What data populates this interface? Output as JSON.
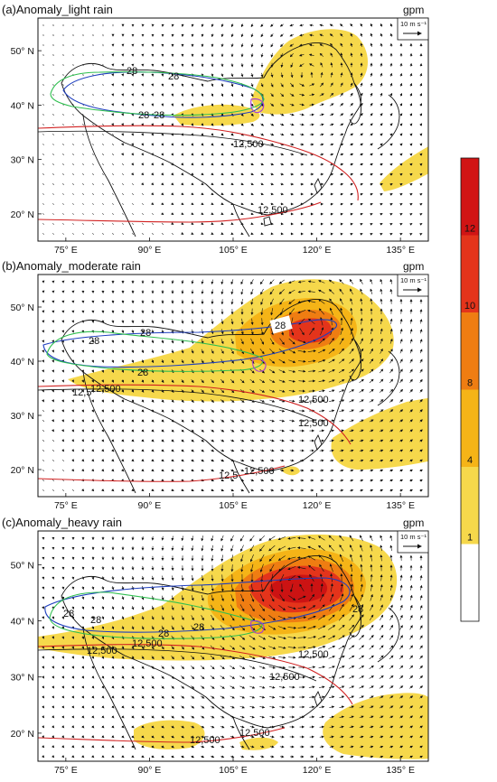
{
  "figure": {
    "unit": "gpm",
    "reference_vector": "10 m s⁻¹",
    "x_ticks": [
      "75° E",
      "90° E",
      "105° E",
      "120° E",
      "135° E"
    ],
    "y_ticks": [
      "20° N",
      "30° N",
      "40° N",
      "50° N"
    ],
    "lon_range": [
      70,
      140
    ],
    "lat_range": [
      15,
      56
    ],
    "contour_labels": {
      "hgt": "12,500",
      "hgt_short": "12,5",
      "temp": "28"
    },
    "colors": {
      "light": "#f6d84b",
      "mid": "#f5b417",
      "orange": "#ef7d12",
      "red": "#e4341b",
      "deep": "#cc1313"
    },
    "panels": [
      {
        "id": "a",
        "title": "(a)Anomaly_light rain"
      },
      {
        "id": "b",
        "title": "(b)Anomaly_moderate rain"
      },
      {
        "id": "c",
        "title": "(c)Anomaly_heavy rain"
      }
    ]
  },
  "colorbar": {
    "labels": [
      "1",
      "4",
      "8",
      "10",
      "12"
    ],
    "colors": [
      "#ffffff",
      "#f6d84b",
      "#f5b417",
      "#ef7d12",
      "#e4341b",
      "#d11414"
    ]
  }
}
